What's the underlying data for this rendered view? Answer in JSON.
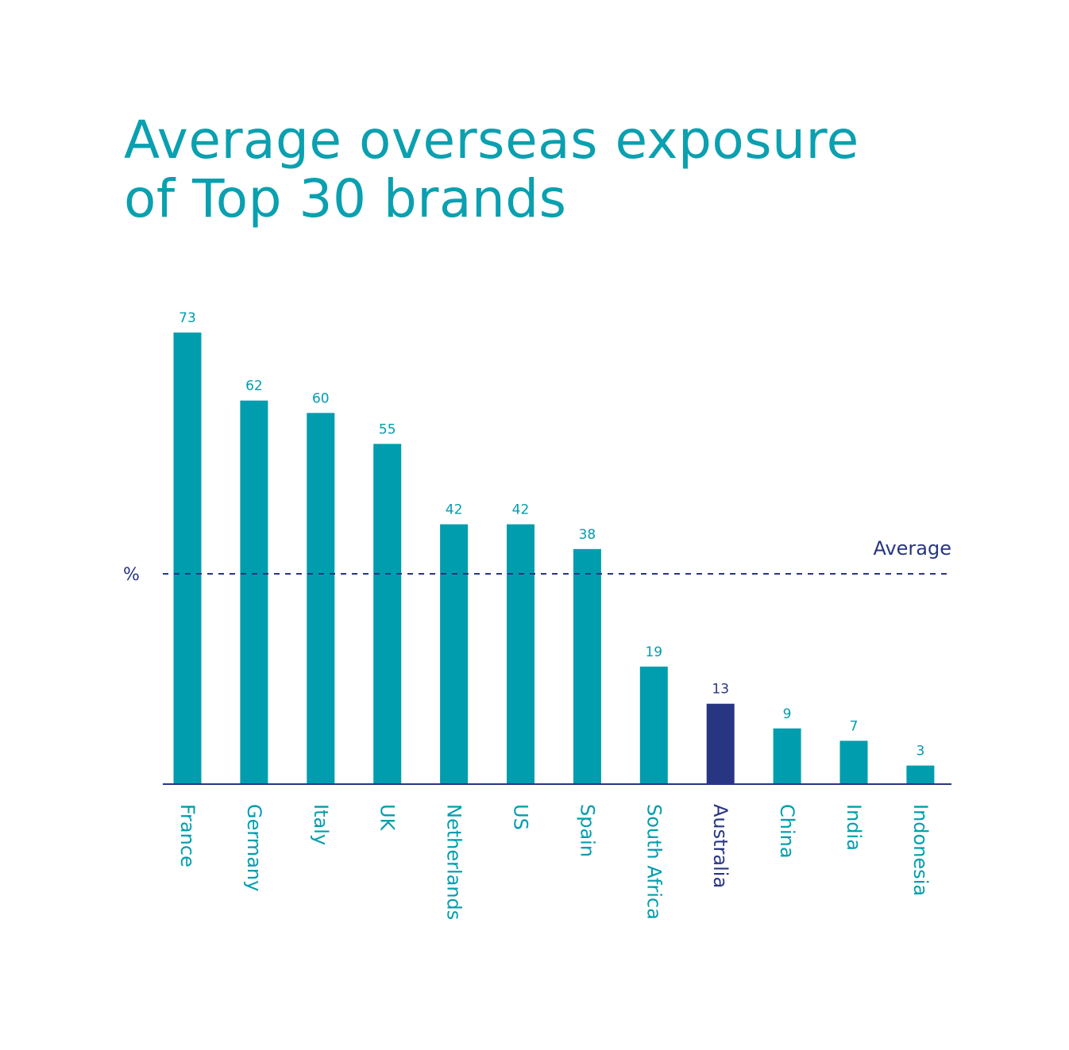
{
  "title": {
    "line1": "Average overseas exposure",
    "line2": "of Top 30 brands"
  },
  "colors": {
    "bar": "#009dae",
    "highlight": "#283583",
    "axis": "#283583",
    "avg_line": "#283583"
  },
  "chart_data": {
    "type": "bar",
    "title": "Average overseas exposure of Top 30 brands",
    "ylabel": "%",
    "xlabel": "",
    "ylim": [
      0,
      73
    ],
    "categories": [
      "France",
      "Germany",
      "Italy",
      "UK",
      "Netherlands",
      "US",
      "Spain",
      "South Africa",
      "Australia",
      "China",
      "India",
      "Indonesia"
    ],
    "values": [
      73,
      62,
      60,
      55,
      42,
      42,
      38,
      19,
      13,
      9,
      7,
      3
    ],
    "highlight": "Australia",
    "average": {
      "label": "Average",
      "value": 34
    },
    "grid": false,
    "legend": "none"
  }
}
